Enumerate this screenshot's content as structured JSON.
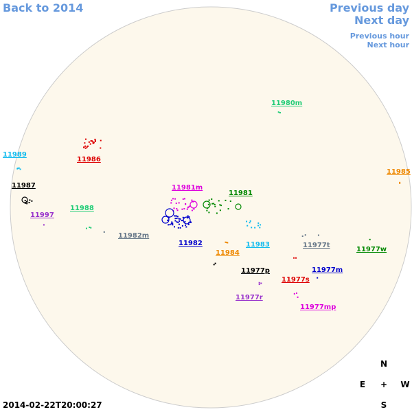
{
  "nav": {
    "back": "Back to 2014",
    "previous_day": "Previous day",
    "next_day": "Next day",
    "previous_hour": "Previous hour",
    "next_hour": "Next hour"
  },
  "timestamp": "2014-02-22T20:00:27",
  "compass": {
    "north": "N",
    "east": "E",
    "center": "+",
    "west": "W",
    "south": "S"
  },
  "regions": [
    {
      "label": "11980m",
      "color": "#22cc77"
    },
    {
      "label": "11986",
      "color": "#dd0000"
    },
    {
      "label": "11989",
      "color": "#11bbee"
    },
    {
      "label": "11987",
      "color": "#000000"
    },
    {
      "label": "11981m",
      "color": "#dd00dd"
    },
    {
      "label": "11981",
      "color": "#008800"
    },
    {
      "label": "11985",
      "color": "#ee8800"
    },
    {
      "label": "11988",
      "color": "#22cc77"
    },
    {
      "label": "11997",
      "color": "#9933cc"
    },
    {
      "label": "11982m",
      "color": "#667788"
    },
    {
      "label": "11982",
      "color": "#0000cc"
    },
    {
      "label": "11983",
      "color": "#11bbee"
    },
    {
      "label": "11977t",
      "color": "#667788"
    },
    {
      "label": "11977w",
      "color": "#008800"
    },
    {
      "label": "11984",
      "color": "#ee8800"
    },
    {
      "label": "11977p",
      "color": "#000000"
    },
    {
      "label": "11977m",
      "color": "#0000cc"
    },
    {
      "label": "11977s",
      "color": "#dd0000"
    },
    {
      "label": "11977r",
      "color": "#9933cc"
    },
    {
      "label": "11977mp",
      "color": "#dd00dd"
    }
  ]
}
